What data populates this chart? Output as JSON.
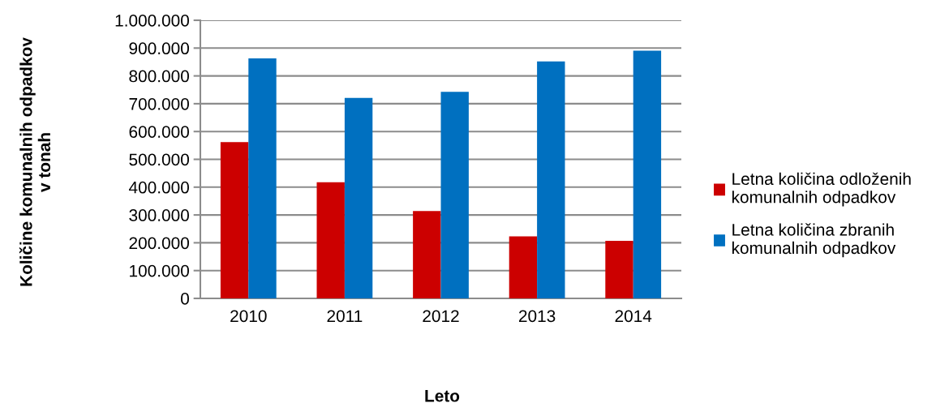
{
  "chart_data": {
    "type": "bar",
    "xlabel": "Leto",
    "ylabel": "Količine komunalnih odpadkov\nv tonah",
    "categories": [
      "2010",
      "2011",
      "2012",
      "2013",
      "2014"
    ],
    "series": [
      {
        "name": "Letna količina odloženih\nkomunalnih odpadkov",
        "color": "#cc0000",
        "values": [
          562000,
          418000,
          314000,
          223000,
          207000
        ]
      },
      {
        "name": "Letna količina zbranih\nkomunalnih odpadkov",
        "color": "#0070c0",
        "values": [
          863000,
          721000,
          743000,
          852000,
          891000
        ]
      }
    ],
    "ylim": [
      0,
      1000000
    ],
    "yticks": [
      0,
      {
        "value": 100000,
        "label": "100.000"
      },
      {
        "value": 200000,
        "label": "200.000"
      },
      {
        "value": 300000,
        "label": "300.000"
      },
      {
        "value": 400000,
        "label": "400.000"
      },
      {
        "value": 500000,
        "label": "500.000"
      },
      {
        "value": 600000,
        "label": "600.000"
      },
      {
        "value": 700000,
        "label": "700.000"
      },
      {
        "value": 800000,
        "label": "800.000"
      },
      {
        "value": 900000,
        "label": "900.000"
      },
      {
        "value": 1000000,
        "label": "1.000.000"
      }
    ],
    "grid": "y",
    "legend": "right"
  }
}
